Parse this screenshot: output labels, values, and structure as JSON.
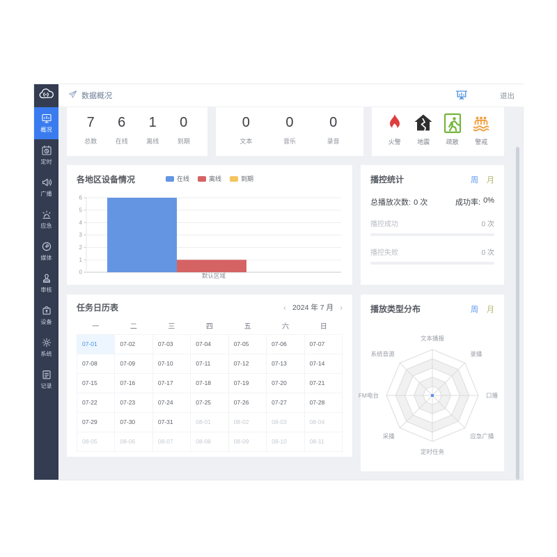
{
  "topbar": {
    "breadcrumb": "数据概况",
    "logout": "退出"
  },
  "sidebar": {
    "items": [
      {
        "label": "概况",
        "icon": "overview-icon",
        "active": true
      },
      {
        "label": "定时",
        "icon": "schedule-icon"
      },
      {
        "label": "广播",
        "icon": "broadcast-icon"
      },
      {
        "label": "应急",
        "icon": "emergency-icon"
      },
      {
        "label": "媒体",
        "icon": "media-icon"
      },
      {
        "label": "审核",
        "icon": "review-icon"
      },
      {
        "label": "设备",
        "icon": "device-icon"
      },
      {
        "label": "系统",
        "icon": "system-icon"
      },
      {
        "label": "记录",
        "icon": "record-icon"
      }
    ]
  },
  "stats": {
    "devices": [
      {
        "value": "7",
        "label": "总数"
      },
      {
        "value": "6",
        "label": "在线"
      },
      {
        "value": "1",
        "label": "离线"
      },
      {
        "value": "0",
        "label": "到期"
      }
    ],
    "media": [
      {
        "value": "0",
        "label": "文本"
      },
      {
        "value": "0",
        "label": "音乐"
      },
      {
        "value": "0",
        "label": "录音"
      }
    ],
    "emergency": [
      {
        "label": "火警",
        "icon": "fire-alarm-icon",
        "color": "#df3d3d"
      },
      {
        "label": "地震",
        "icon": "earthquake-icon",
        "color": "#2e2e2e"
      },
      {
        "label": "疏散",
        "icon": "evacuation-icon",
        "color": "#74b43c"
      },
      {
        "label": "警戒",
        "icon": "flood-alert-icon",
        "color": "#f09d3c"
      }
    ]
  },
  "chart_data": [
    {
      "type": "bar",
      "title": "各地区设备情况",
      "categories": [
        "默认区域"
      ],
      "series": [
        {
          "name": "在线",
          "color": "#6495e3",
          "values": [
            6
          ]
        },
        {
          "name": "离线",
          "color": "#d66364",
          "values": [
            1
          ]
        },
        {
          "name": "到期",
          "color": "#f2c55f",
          "values": [
            0
          ]
        }
      ],
      "xlabel": "",
      "ylabel": "",
      "ylim": [
        0,
        6
      ],
      "grid": true,
      "legend_position": "top-center"
    },
    {
      "type": "radar",
      "title": "播放类型分布",
      "axes": [
        "文本播报",
        "录播",
        "口播",
        "应急广播",
        "定时任务",
        "采播",
        "FM电台",
        "系统音源"
      ],
      "series": [
        {
          "name": "播放类型",
          "values": [
            0,
            0,
            0,
            0,
            0,
            0,
            0,
            0
          ]
        }
      ],
      "rings": 5,
      "legend_position": "none"
    }
  ],
  "playback_panel": {
    "title": "播控统计",
    "tabs": [
      {
        "label": "周",
        "active": true
      },
      {
        "label": "月"
      }
    ],
    "total_label": "总播放次数:",
    "total_value": "0 次",
    "rate_label": "成功率:",
    "rate_value": "0%",
    "rows": [
      {
        "label": "播控成功",
        "value": "0 次"
      },
      {
        "label": "播控失败",
        "value": "0 次"
      }
    ]
  },
  "radar_panel": {
    "tabs": [
      {
        "label": "周",
        "active": true
      },
      {
        "label": "月"
      }
    ]
  },
  "calendar": {
    "title": "任务日历表",
    "prev": "‹",
    "next": "›",
    "month_label": "2024 年 7 月",
    "weekdays": [
      "一",
      "二",
      "三",
      "四",
      "五",
      "六",
      "日"
    ],
    "cells": [
      {
        "label": "07-01",
        "state": "selected"
      },
      {
        "label": "07-02",
        "state": "current"
      },
      {
        "label": "07-03",
        "state": "current"
      },
      {
        "label": "07-04",
        "state": "current"
      },
      {
        "label": "07-05",
        "state": "current"
      },
      {
        "label": "07-06",
        "state": "current"
      },
      {
        "label": "07-07",
        "state": "current"
      },
      {
        "label": "07-08",
        "state": "current"
      },
      {
        "label": "07-09",
        "state": "current"
      },
      {
        "label": "07-10",
        "state": "current"
      },
      {
        "label": "07-11",
        "state": "current"
      },
      {
        "label": "07-12",
        "state": "current"
      },
      {
        "label": "07-13",
        "state": "current"
      },
      {
        "label": "07-14",
        "state": "current"
      },
      {
        "label": "07-15",
        "state": "current"
      },
      {
        "label": "07-16",
        "state": "current"
      },
      {
        "label": "07-17",
        "state": "current"
      },
      {
        "label": "07-18",
        "state": "current"
      },
      {
        "label": "07-19",
        "state": "current"
      },
      {
        "label": "07-20",
        "state": "current"
      },
      {
        "label": "07-21",
        "state": "current"
      },
      {
        "label": "07-22",
        "state": "current"
      },
      {
        "label": "07-23",
        "state": "current"
      },
      {
        "label": "07-24",
        "state": "current"
      },
      {
        "label": "07-25",
        "state": "current"
      },
      {
        "label": "07-26",
        "state": "current"
      },
      {
        "label": "07-27",
        "state": "current"
      },
      {
        "label": "07-28",
        "state": "current"
      },
      {
        "label": "07-29",
        "state": "current"
      },
      {
        "label": "07-30",
        "state": "current"
      },
      {
        "label": "07-31",
        "state": "current"
      },
      {
        "label": "08-01",
        "state": "next"
      },
      {
        "label": "08-02",
        "state": "next"
      },
      {
        "label": "08-03",
        "state": "next"
      },
      {
        "label": "08-04",
        "state": "next"
      },
      {
        "label": "08-05",
        "state": "next"
      },
      {
        "label": "08-06",
        "state": "next"
      },
      {
        "label": "08-07",
        "state": "next"
      },
      {
        "label": "08-08",
        "state": "next"
      },
      {
        "label": "08-09",
        "state": "next"
      },
      {
        "label": "08-10",
        "state": "next"
      },
      {
        "label": "08-11",
        "state": "next"
      }
    ]
  },
  "colors": {
    "sidebar_bg": "#333c50",
    "sidebar_active": "#3a7cf0",
    "main_bg": "#eef0f4",
    "online_blue": "#6495e3",
    "offline_red": "#d66364",
    "expired_yellow": "#f2c55f",
    "tab_active": "#5e97f0",
    "tab_inactive": "#b3b46b",
    "selected_day": "#4a90e2"
  }
}
